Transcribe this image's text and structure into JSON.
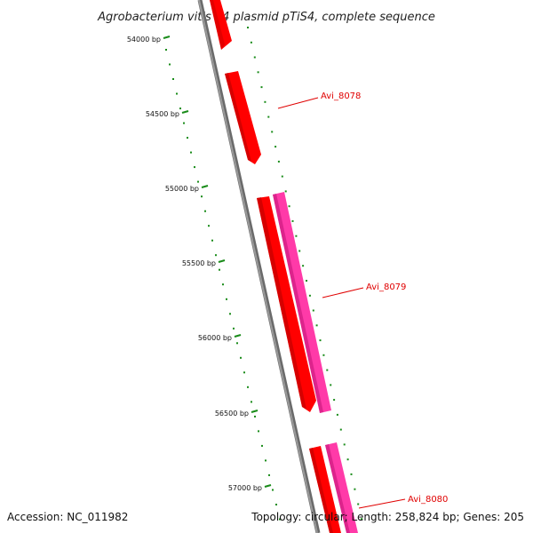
{
  "title": "Agrobacterium vitis S4 plasmid pTiS4, complete sequence",
  "footer": {
    "accession": "Accession: NC_011982",
    "summary": "Topology: circular; Length: 258,824 bp; Genes: 205"
  },
  "ticks": [
    {
      "label": "54000 bp"
    },
    {
      "label": "54500 bp"
    },
    {
      "label": "55000 bp"
    },
    {
      "label": "55500 bp"
    },
    {
      "label": "56000 bp"
    },
    {
      "label": "56500 bp"
    },
    {
      "label": "57000 bp"
    }
  ],
  "genes": [
    {
      "label": "Avi_8078"
    },
    {
      "label": "Avi_8079"
    },
    {
      "label": "Avi_8080"
    }
  ],
  "colors": {
    "backbone": "#8c8c8c",
    "cds_forward": "#ff0000",
    "cds_other": "#ff3aa8",
    "tick": "#1a8c1a",
    "gene_label": "#e00000"
  }
}
